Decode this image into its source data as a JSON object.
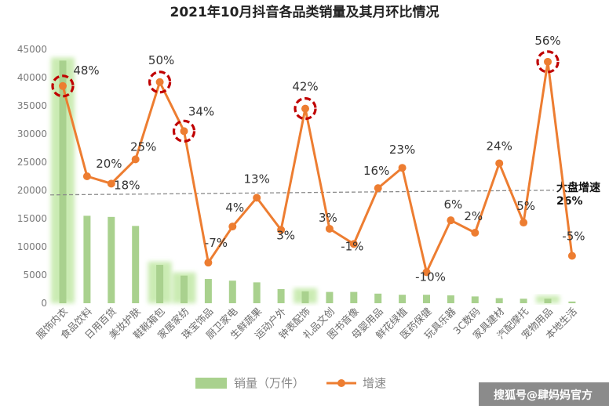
{
  "chart_data": {
    "type": "bar+line",
    "title": "2021年10月抖音各品类销量及其月环比情况",
    "categories": [
      "服饰内衣",
      "食品饮料",
      "日用百货",
      "美妆护肤",
      "鞋靴箱包",
      "家居家纺",
      "珠宝饰品",
      "厨卫家电",
      "生鲜蔬果",
      "运动户外",
      "钟表配饰",
      "礼品文创",
      "图书音像",
      "母婴用品",
      "鲜花绿植",
      "医药保健",
      "玩具乐器",
      "3C数码",
      "家具建材",
      "汽配摩托",
      "宠物用品",
      "本地生活"
    ],
    "series": [
      {
        "name": "销量（万件）",
        "type": "bar",
        "color": "#a9d18e",
        "values": [
          43000,
          15500,
          15300,
          13700,
          6800,
          4900,
          4300,
          4000,
          3700,
          2500,
          2100,
          2000,
          2000,
          1700,
          1500,
          1500,
          1400,
          1200,
          900,
          800,
          800,
          300
        ]
      },
      {
        "name": "增速",
        "type": "line",
        "color": "#ed7d31",
        "values": [
          38500,
          22500,
          21200,
          25500,
          39200,
          30500,
          7200,
          13600,
          18700,
          13000,
          34500,
          13200,
          10500,
          20400,
          24000,
          5500,
          14700,
          12500,
          24800,
          14300,
          42800,
          8400
        ],
        "labels": [
          "48%",
          "20%",
          "18%",
          "25%",
          "50%",
          "34%",
          "-7%",
          "4%",
          "13%",
          "3%",
          "42%",
          "3%",
          "-1%",
          "16%",
          "23%",
          "-10%",
          "6%",
          "2%",
          "24%",
          "5%",
          "56%",
          "-5%"
        ]
      }
    ],
    "reference_line": {
      "value": 19200,
      "label_1": "大盘增速",
      "label_2": "26%"
    },
    "ylim": [
      0,
      45000
    ],
    "yticks": [
      0,
      5000,
      10000,
      15000,
      20000,
      25000,
      30000,
      35000,
      40000,
      45000
    ],
    "highlighted": [
      "服饰内衣",
      "鞋靴箱包",
      "家居家纺",
      "钟表配饰",
      "宠物用品"
    ],
    "glow_bars": [
      "服饰内衣",
      "鞋靴箱包",
      "家居家纺",
      "钟表配饰",
      "宠物用品"
    ],
    "legend": {
      "position": "bottom",
      "items": [
        "销量（万件）",
        "增速"
      ]
    },
    "grid": false
  },
  "watermark": "搜狐号@肆妈妈官方"
}
